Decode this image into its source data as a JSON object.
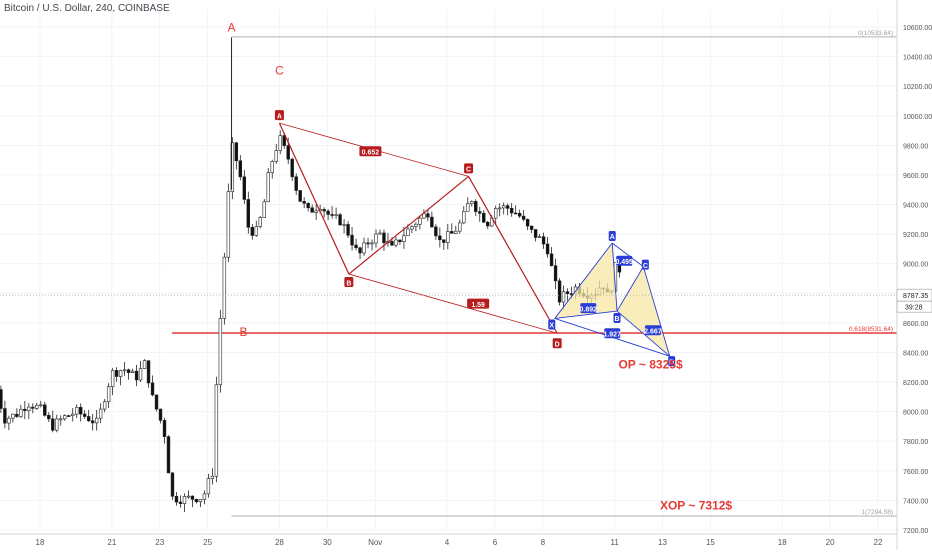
{
  "header": {
    "title": "Bitcoin / U.S. Dollar, 240, COINBASE"
  },
  "colors": {
    "up": "#5b5b5b",
    "down": "#111111",
    "grid": "#f0f3fa",
    "pattern_red": "#b71c1c",
    "pattern_blue": "#2a3dd6",
    "fill_blue": "#c9d8f5",
    "fill_yellow": "#f7e7a6",
    "hline_red": "#e53935",
    "axis_text": "#555555",
    "fib_line": "#b0b0b0"
  },
  "chart_data": {
    "type": "candlestick",
    "title": "Bitcoin / U.S. Dollar, 240, COINBASE",
    "ylim": [
      7200,
      10750
    ],
    "y_ticks": [
      7200,
      7400,
      7600,
      7800,
      8000,
      8200,
      8400,
      8600,
      8800,
      9000,
      9200,
      9400,
      9600,
      9800,
      10000,
      10200,
      10400,
      10600
    ],
    "y_tick_labels": [
      "7200.00",
      "7400.00",
      "7600.00",
      "7800.00",
      "8000.00",
      "8200.00",
      "8400.00",
      "8600.00",
      "8800.00",
      "9000.00",
      "9200.00",
      "9400.00",
      "9600.00",
      "9800.00",
      "10000.00",
      "10200.00",
      "10400.00",
      "10600.00"
    ],
    "x_ticks": [
      {
        "day": 18,
        "label": "18"
      },
      {
        "day": 21,
        "label": "21"
      },
      {
        "day": 23,
        "label": "23"
      },
      {
        "day": 25,
        "label": "25"
      },
      {
        "day": 28,
        "label": "28"
      },
      {
        "day": 30,
        "label": "30"
      },
      {
        "day": 32,
        "label": "Nov"
      },
      {
        "day": 35,
        "label": "4"
      },
      {
        "day": 37,
        "label": "6"
      },
      {
        "day": 39,
        "label": "8"
      },
      {
        "day": 42,
        "label": "11"
      },
      {
        "day": 44,
        "label": "13"
      },
      {
        "day": 46,
        "label": "15"
      },
      {
        "day": 49,
        "label": "18"
      },
      {
        "day": 51,
        "label": "20"
      },
      {
        "day": 53,
        "label": "22"
      }
    ],
    "xlim": [
      16.2,
      54.3
    ],
    "price_close": 8787.35,
    "price_label": "8787.35",
    "countdown_label": "39:28",
    "fib_levels": [
      {
        "value": 10533.64,
        "label": "0(10533.64)",
        "from_day": 26.0,
        "color": "#b0b0b0"
      },
      {
        "value": 8531.64,
        "label": "0.618(8531.64)",
        "from_day": 26.0,
        "color": "#e53935"
      },
      {
        "value": 7294.58,
        "label": "1(7294.58)",
        "from_day": 26.0,
        "color": "#b0b0b0"
      }
    ],
    "candle_anchors": [
      [
        16.2,
        8150
      ],
      [
        16.5,
        7950
      ],
      [
        17.0,
        7980
      ],
      [
        17.5,
        8060
      ],
      [
        18.0,
        8020
      ],
      [
        18.5,
        7900
      ],
      [
        19.0,
        7960
      ],
      [
        19.5,
        8000
      ],
      [
        20.0,
        7960
      ],
      [
        20.4,
        7920
      ],
      [
        20.7,
        8100
      ],
      [
        21.0,
        8260
      ],
      [
        21.5,
        8290
      ],
      [
        22.0,
        8230
      ],
      [
        22.4,
        8330
      ],
      [
        22.7,
        8090
      ],
      [
        23.0,
        7960
      ],
      [
        23.2,
        7850
      ],
      [
        23.5,
        7420
      ],
      [
        24.0,
        7410
      ],
      [
        24.5,
        7420
      ],
      [
        24.8,
        7420
      ],
      [
        25.2,
        7590
      ],
      [
        25.4,
        8300
      ],
      [
        25.6,
        8800
      ],
      [
        25.8,
        9300
      ],
      [
        26.0,
        9800
      ],
      [
        26.3,
        9650
      ],
      [
        26.7,
        9250
      ],
      [
        27.0,
        9200
      ],
      [
        27.3,
        9350
      ],
      [
        27.6,
        9650
      ],
      [
        28.0,
        9850
      ],
      [
        28.4,
        9700
      ],
      [
        28.8,
        9450
      ],
      [
        29.2,
        9350
      ],
      [
        29.7,
        9400
      ],
      [
        30.2,
        9300
      ],
      [
        30.5,
        9300
      ],
      [
        30.9,
        9200
      ],
      [
        31.3,
        9050
      ],
      [
        31.7,
        9150
      ],
      [
        32.2,
        9200
      ],
      [
        32.7,
        9100
      ],
      [
        33.2,
        9200
      ],
      [
        33.7,
        9280
      ],
      [
        34.2,
        9350
      ],
      [
        34.7,
        9150
      ],
      [
        35.2,
        9200
      ],
      [
        35.6,
        9280
      ],
      [
        36.0,
        9450
      ],
      [
        36.3,
        9350
      ],
      [
        36.7,
        9280
      ],
      [
        37.0,
        9380
      ],
      [
        37.5,
        9380
      ],
      [
        38.0,
        9330
      ],
      [
        38.4,
        9230
      ],
      [
        38.8,
        9180
      ],
      [
        39.2,
        9100
      ],
      [
        39.5,
        8870
      ],
      [
        39.7,
        8760
      ],
      [
        40.0,
        8800
      ],
      [
        40.4,
        8840
      ],
      [
        40.8,
        8800
      ],
      [
        41.2,
        8810
      ],
      [
        41.5,
        8870
      ],
      [
        41.75,
        8760
      ],
      [
        42.0,
        8950
      ],
      [
        42.15,
        9050
      ],
      [
        42.3,
        8787
      ]
    ],
    "waves": [
      {
        "label": "A",
        "day": 26.0,
        "price": 10530,
        "color": "#e53935"
      },
      {
        "label": "B",
        "day": 26.5,
        "price": 8470,
        "color": "#e53935"
      },
      {
        "label": "C",
        "day": 28.0,
        "price": 10240,
        "color": "#e53935"
      }
    ],
    "pattern_red": {
      "points": [
        {
          "label": "A",
          "day": 28.0,
          "price": 9950
        },
        {
          "label": "B",
          "day": 30.9,
          "price": 8930
        },
        {
          "label": "C",
          "day": 35.9,
          "price": 9590
        },
        {
          "label": "D",
          "day": 39.6,
          "price": 8530
        }
      ],
      "ratios": [
        {
          "label": "0.652",
          "day": 31.8,
          "price": 9760
        },
        {
          "label": "1.59",
          "day": 36.3,
          "price": 8730
        }
      ]
    },
    "pattern_blue": {
      "points": [
        {
          "label": "X",
          "day": 39.5,
          "price": 8630
        },
        {
          "label": "A",
          "day": 41.9,
          "price": 9140
        },
        {
          "label": "B",
          "day": 42.1,
          "price": 8680
        },
        {
          "label": "C",
          "day": 43.2,
          "price": 8980
        },
        {
          "label": "D",
          "day": 44.3,
          "price": 8375
        }
      ],
      "ratios": [
        {
          "label": "0.892",
          "day": 40.9,
          "price": 8700
        },
        {
          "label": "0.495",
          "day": 42.4,
          "price": 9020
        },
        {
          "label": "1.927",
          "day": 41.9,
          "price": 8530
        },
        {
          "label": "2.667",
          "day": 43.6,
          "price": 8550
        }
      ]
    },
    "annotations": [
      {
        "text": "OP ~ 8325$",
        "day": 43.5,
        "price": 8290,
        "color": "#e53935"
      },
      {
        "text": "XOP ~ 7312$",
        "day": 45.4,
        "price": 7340,
        "color": "#e53935"
      }
    ]
  }
}
